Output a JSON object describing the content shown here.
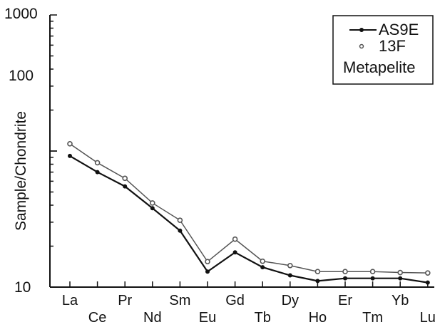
{
  "chart_data": {
    "type": "line",
    "ylabel": "Sample/Chondrite",
    "xlabel": "",
    "yscale": "log",
    "ylim": [
      10,
      1000
    ],
    "yticks": [
      "10",
      "100",
      "1000"
    ],
    "categories": [
      "La",
      "Ce",
      "Pr",
      "Nd",
      "Sm",
      "Eu",
      "Gd",
      "Tb",
      "Dy",
      "Ho",
      "Er",
      "Tm",
      "Yb",
      "Lu"
    ],
    "series": [
      {
        "name": "AS9E",
        "color": "#111111",
        "marker": "filled-circle",
        "values": [
          92,
          70,
          55,
          38,
          26,
          13,
          18,
          14,
          12.2,
          11.1,
          11.6,
          11.6,
          11.6,
          10.8
        ]
      },
      {
        "name": "13F",
        "color": "#555555",
        "marker": "open-circle",
        "values": [
          113,
          82,
          63,
          41.5,
          31,
          15.4,
          22.5,
          15.5,
          14.4,
          13,
          13,
          13,
          12.8,
          12.7
        ]
      }
    ],
    "legend": {
      "position": "top-right",
      "entries": [
        "AS9E",
        "13F"
      ],
      "extra_text": "Metapelite"
    }
  }
}
